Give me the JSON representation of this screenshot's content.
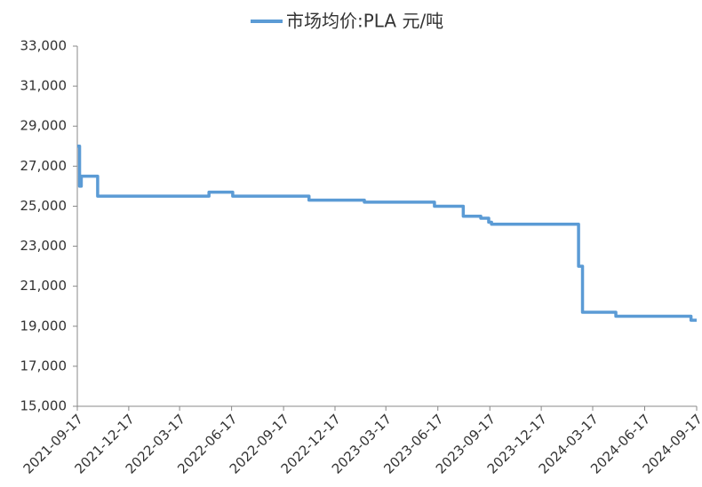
{
  "chart_data": {
    "type": "line",
    "x": [
      "2021-09-17",
      "2021-09-21",
      "2021-09-21",
      "2021-09-24",
      "2021-09-24",
      "2021-10-23",
      "2021-10-23",
      "2022-05-08",
      "2022-05-08",
      "2022-06-19",
      "2022-06-19",
      "2022-11-01",
      "2022-11-01",
      "2023-02-07",
      "2023-02-07",
      "2023-06-11",
      "2023-06-11",
      "2023-08-01",
      "2023-08-01",
      "2023-09-01",
      "2023-09-01",
      "2023-09-15",
      "2023-09-15",
      "2023-09-20",
      "2023-09-20",
      "2024-02-21",
      "2024-02-21",
      "2024-02-28",
      "2024-02-28",
      "2024-04-27",
      "2024-04-27",
      "2024-09-07",
      "2024-09-07",
      "2024-09-17"
    ],
    "series": [
      {
        "name": "市场均价:PLA 元/吨",
        "color": "#5b9bd5",
        "values": [
          28000,
          28000,
          26000,
          26000,
          26500,
          26500,
          25500,
          25500,
          25700,
          25700,
          25500,
          25500,
          25300,
          25300,
          25200,
          25200,
          25000,
          25000,
          24500,
          24500,
          24400,
          24400,
          24200,
          24200,
          24100,
          24100,
          22000,
          22000,
          19700,
          19700,
          19500,
          19500,
          19300,
          19300
        ]
      }
    ],
    "xlim": [
      "2021-09-17",
      "2024-09-17"
    ],
    "xticks": [
      "2021-09-17",
      "2021-12-17",
      "2022-03-17",
      "2022-06-17",
      "2022-09-17",
      "2022-12-17",
      "2023-03-17",
      "2023-06-17",
      "2023-09-17",
      "2023-12-17",
      "2024-03-17",
      "2024-06-17",
      "2024-09-17"
    ],
    "ylim": [
      15000,
      33000
    ],
    "yticks": [
      {
        "value": 15000,
        "label": "15,000"
      },
      {
        "value": 17000,
        "label": "17,000"
      },
      {
        "value": 19000,
        "label": "19,000"
      },
      {
        "value": 21000,
        "label": "21,000"
      },
      {
        "value": 23000,
        "label": "23,000"
      },
      {
        "value": 25000,
        "label": "25,000"
      },
      {
        "value": 27000,
        "label": "27,000"
      },
      {
        "value": 29000,
        "label": "29,000"
      },
      {
        "value": 31000,
        "label": "31,000"
      },
      {
        "value": 33000,
        "label": "33,000"
      }
    ],
    "grid": false,
    "legend": "top"
  }
}
